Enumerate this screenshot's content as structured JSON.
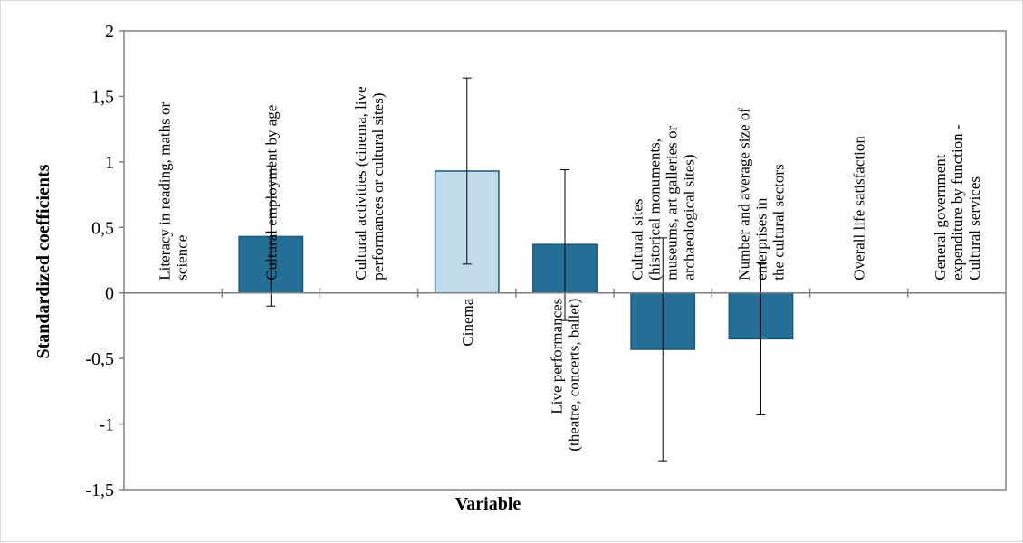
{
  "chart_data": {
    "type": "bar",
    "title": "",
    "xlabel": "Variable",
    "ylabel": "Standardized coefficients",
    "ylim": [
      -1.5,
      2
    ],
    "yticks": [
      {
        "value": 2,
        "label": "2"
      },
      {
        "value": 1.5,
        "label": "1,5"
      },
      {
        "value": 1,
        "label": "1"
      },
      {
        "value": 0.5,
        "label": "0,5"
      },
      {
        "value": 0,
        "label": "0"
      },
      {
        "value": -0.5,
        "label": "-0,5"
      },
      {
        "value": -1,
        "label": "-1"
      },
      {
        "value": -1.5,
        "label": "-1,5"
      }
    ],
    "grid": false,
    "legend": "none",
    "categories": [
      {
        "label": [
          "Literacy in reading, maths or",
          "science"
        ],
        "value": null,
        "err_low": null,
        "err_high": null,
        "highlight": false
      },
      {
        "label": [
          "Cultural employment by age"
        ],
        "value": 0.43,
        "err_low": -0.1,
        "err_high": 0.97,
        "highlight": false
      },
      {
        "label": [
          "Cultural activities (cinema, live",
          "performances or cultural sites)"
        ],
        "value": null,
        "err_low": null,
        "err_high": null,
        "highlight": false
      },
      {
        "label": [
          "Cinema"
        ],
        "value": 0.93,
        "err_low": 0.22,
        "err_high": 1.64,
        "highlight": true
      },
      {
        "label": [
          "Live performances",
          "(theatre, concerts, ballet)"
        ],
        "value": 0.37,
        "err_low": -0.21,
        "err_high": 0.94,
        "highlight": false
      },
      {
        "label": [
          "Cultural sites",
          "(historical monuments,",
          "museums, art galleries or",
          "archaeological sites)"
        ],
        "value": -0.43,
        "err_low": -1.28,
        "err_high": 0.42,
        "highlight": false
      },
      {
        "label": [
          "Number and average size of",
          "enterprises in",
          "the cultural sectors"
        ],
        "value": -0.35,
        "err_low": -0.93,
        "err_high": 0.23,
        "highlight": false
      },
      {
        "label": [
          "Overall life satisfaction"
        ],
        "value": null,
        "err_low": null,
        "err_high": null,
        "highlight": false
      },
      {
        "label": [
          "General government",
          "expenditure by function -",
          "Cultural services"
        ],
        "value": null,
        "err_low": null,
        "err_high": null,
        "highlight": false
      }
    ],
    "colors": {
      "bar": "#236f95",
      "bar_highlight": "#c0dcea",
      "bar_stroke": "#1b5a7a",
      "axis": "#808080",
      "error_bar": "#000000"
    }
  }
}
